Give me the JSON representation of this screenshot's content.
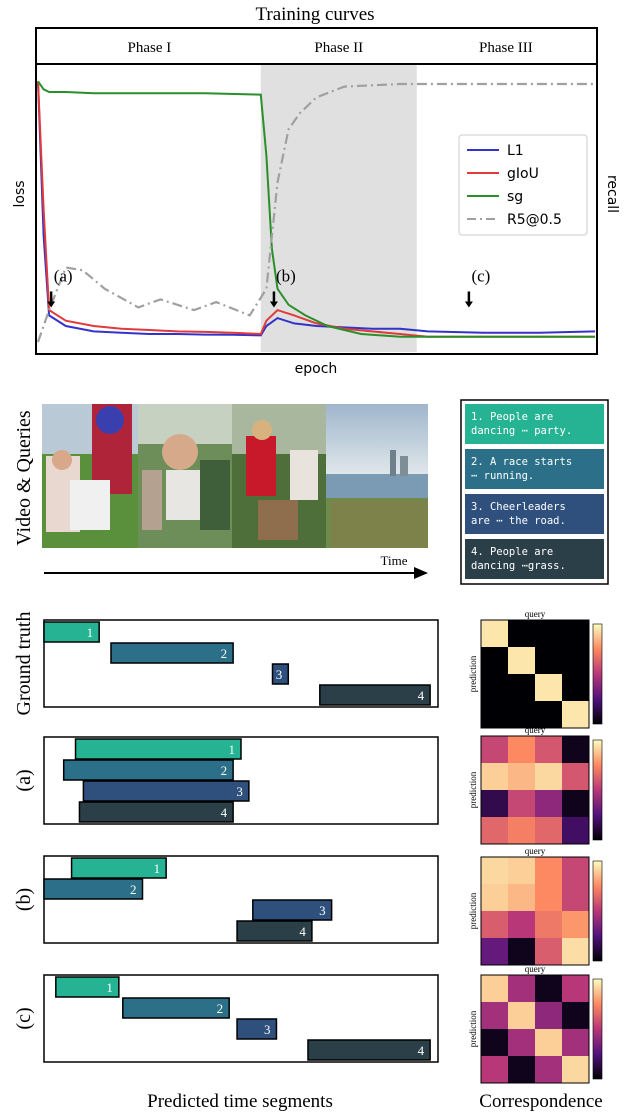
{
  "colors": {
    "seg1": "#26b394",
    "seg2": "#2b7088",
    "seg3": "#2f4f7d",
    "seg4": "#2a3f47",
    "l1": "#3333cc",
    "giou": "#e03a3a",
    "sg": "#2a8f2a",
    "r5": "#a0a0a0",
    "phase_band": "#e0e0e0"
  },
  "chart_data": [
    {
      "type": "line",
      "title": "Training curves",
      "xlabel": "epoch",
      "ylabel": "loss",
      "ylabel_right": "recall",
      "phases": [
        {
          "label": "Phase I",
          "start": 0,
          "end": 0.4
        },
        {
          "label": "Phase II",
          "start": 0.4,
          "end": 0.68
        },
        {
          "label": "Phase III",
          "start": 0.68,
          "end": 1.0
        }
      ],
      "highlight_phase": 1,
      "markers": [
        {
          "label": "(a)",
          "x": 0.02,
          "y": 0.19
        },
        {
          "label": "(b)",
          "x": 0.42,
          "y": 0.19
        },
        {
          "label": "(c)",
          "x": 0.77,
          "y": 0.19
        }
      ],
      "legend": [
        {
          "name": "L1",
          "style": "solid",
          "color_key": "l1"
        },
        {
          "name": "gIoU",
          "style": "solid",
          "color_key": "giou"
        },
        {
          "name": "sg",
          "style": "solid",
          "color_key": "sg"
        },
        {
          "name": "R5@0.5",
          "style": "dashdot",
          "color_key": "r5"
        }
      ],
      "legend_position": "right",
      "series": [
        {
          "name": "L1",
          "x": [
            0,
            0.01,
            0.02,
            0.05,
            0.1,
            0.15,
            0.2,
            0.25,
            0.3,
            0.35,
            0.4,
            0.41,
            0.43,
            0.46,
            0.5,
            0.55,
            0.6,
            0.65,
            0.7,
            0.8,
            0.9,
            1.0
          ],
          "y": [
            0.98,
            0.4,
            0.1,
            0.06,
            0.04,
            0.035,
            0.03,
            0.03,
            0.028,
            0.027,
            0.025,
            0.06,
            0.09,
            0.07,
            0.06,
            0.055,
            0.05,
            0.05,
            0.04,
            0.035,
            0.035,
            0.04
          ]
        },
        {
          "name": "gIoU",
          "x": [
            0,
            0.01,
            0.02,
            0.05,
            0.1,
            0.15,
            0.2,
            0.25,
            0.3,
            0.35,
            0.4,
            0.41,
            0.43,
            0.46,
            0.5,
            0.55,
            0.6,
            0.65,
            0.7,
            0.8,
            0.9,
            1.0
          ],
          "y": [
            0.98,
            0.5,
            0.12,
            0.08,
            0.06,
            0.05,
            0.045,
            0.04,
            0.038,
            0.035,
            0.03,
            0.08,
            0.12,
            0.1,
            0.07,
            0.05,
            0.04,
            0.03,
            0.02,
            0.02,
            0.02,
            0.02
          ]
        },
        {
          "name": "sg",
          "x": [
            0,
            0.01,
            0.02,
            0.05,
            0.1,
            0.2,
            0.3,
            0.4,
            0.41,
            0.42,
            0.43,
            0.45,
            0.48,
            0.52,
            0.58,
            0.65,
            0.75,
            0.9,
            1.0
          ],
          "y": [
            0.98,
            0.95,
            0.94,
            0.94,
            0.935,
            0.935,
            0.935,
            0.93,
            0.7,
            0.35,
            0.2,
            0.14,
            0.1,
            0.06,
            0.03,
            0.02,
            0.02,
            0.02,
            0.02
          ]
        },
        {
          "name": "R5@0.5",
          "x": [
            0,
            0.02,
            0.05,
            0.08,
            0.12,
            0.18,
            0.22,
            0.28,
            0.32,
            0.38,
            0.41,
            0.43,
            0.45,
            0.47,
            0.5,
            0.55,
            0.65,
            0.8,
            0.9,
            1.0
          ],
          "y": [
            0.0,
            0.12,
            0.28,
            0.27,
            0.2,
            0.13,
            0.16,
            0.12,
            0.15,
            0.1,
            0.2,
            0.6,
            0.8,
            0.86,
            0.92,
            0.96,
            0.97,
            0.97,
            0.97,
            0.97
          ]
        }
      ]
    },
    {
      "type": "bar",
      "title": "Video & Queries",
      "xlabel": "Time",
      "frames": 4,
      "queries": [
        "1. People are dancing ⋯ party.",
        "2. A race starts ⋯ running.",
        "3. Cheerleaders are ⋯ the road.",
        "4. People are dancing ⋯grass."
      ]
    },
    {
      "type": "bar",
      "xlabel": "Predicted time segments",
      "panels": [
        {
          "label": "Ground truth",
          "segments": [
            {
              "id": "1",
              "start": 0.0,
              "end": 0.14,
              "row": 0
            },
            {
              "id": "2",
              "start": 0.17,
              "end": 0.48,
              "row": 1
            },
            {
              "id": "3",
              "start": 0.58,
              "end": 0.62,
              "row": 2
            },
            {
              "id": "4",
              "start": 0.7,
              "end": 0.98,
              "row": 3
            }
          ]
        },
        {
          "label": "(a)",
          "segments": [
            {
              "id": "1",
              "start": 0.08,
              "end": 0.5,
              "row": 0
            },
            {
              "id": "2",
              "start": 0.05,
              "end": 0.48,
              "row": 1
            },
            {
              "id": "3",
              "start": 0.1,
              "end": 0.52,
              "row": 2
            },
            {
              "id": "4",
              "start": 0.09,
              "end": 0.48,
              "row": 3
            }
          ]
        },
        {
          "label": "(b)",
          "segments": [
            {
              "id": "1",
              "start": 0.07,
              "end": 0.31,
              "row": 0
            },
            {
              "id": "2",
              "start": 0.0,
              "end": 0.25,
              "row": 1
            },
            {
              "id": "3",
              "start": 0.53,
              "end": 0.73,
              "row": 2
            },
            {
              "id": "4",
              "start": 0.49,
              "end": 0.68,
              "row": 3
            }
          ]
        },
        {
          "label": "(c)",
          "segments": [
            {
              "id": "1",
              "start": 0.03,
              "end": 0.19,
              "row": 0
            },
            {
              "id": "2",
              "start": 0.2,
              "end": 0.47,
              "row": 1
            },
            {
              "id": "3",
              "start": 0.49,
              "end": 0.59,
              "row": 2
            },
            {
              "id": "4",
              "start": 0.67,
              "end": 0.98,
              "row": 3
            }
          ]
        }
      ]
    },
    {
      "type": "heatmap",
      "xlabel": "query",
      "ylabel": "prediction",
      "caption": "Correspondence",
      "colormap": "magma",
      "matrices": [
        [
          [
            0.95,
            0.0,
            0.0,
            0.0
          ],
          [
            0.0,
            0.95,
            0.0,
            0.0
          ],
          [
            0.0,
            0.0,
            0.95,
            0.0
          ],
          [
            0.0,
            0.0,
            0.0,
            0.95
          ]
        ],
        [
          [
            0.55,
            0.75,
            0.6,
            0.05
          ],
          [
            0.9,
            0.85,
            0.92,
            0.6
          ],
          [
            0.15,
            0.55,
            0.4,
            0.05
          ],
          [
            0.65,
            0.72,
            0.65,
            0.2
          ]
        ],
        [
          [
            0.92,
            0.9,
            0.75,
            0.55
          ],
          [
            0.9,
            0.85,
            0.75,
            0.55
          ],
          [
            0.62,
            0.5,
            0.7,
            0.78
          ],
          [
            0.3,
            0.05,
            0.62,
            0.93
          ]
        ],
        [
          [
            0.9,
            0.45,
            0.05,
            0.5
          ],
          [
            0.45,
            0.9,
            0.4,
            0.05
          ],
          [
            0.05,
            0.45,
            0.9,
            0.45
          ],
          [
            0.5,
            0.05,
            0.45,
            0.92
          ]
        ]
      ]
    }
  ]
}
